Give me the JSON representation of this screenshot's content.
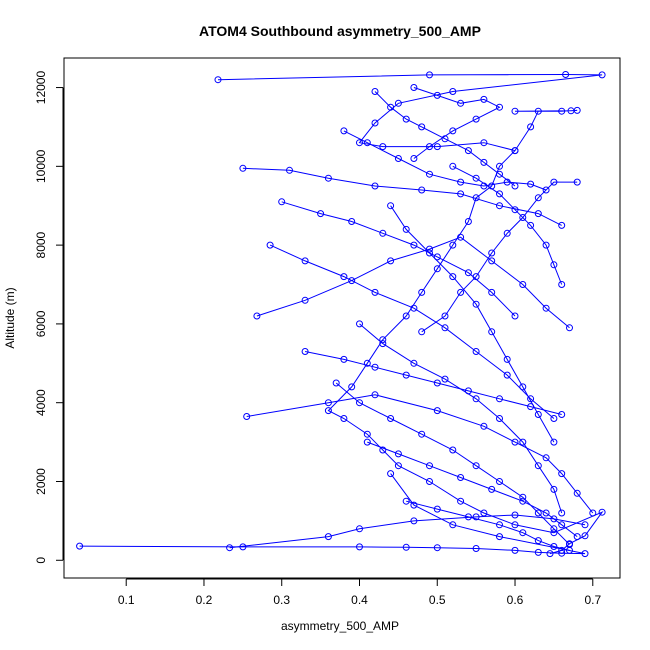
{
  "chart_data": {
    "type": "scatter",
    "title": "ATOM4 Southbound asymmetry_500_AMP",
    "xlabel": "asymmetry_500_AMP",
    "ylabel": "Altitude (m)",
    "xlim": [
      0.02,
      0.735
    ],
    "ylim": [
      -450,
      12750
    ],
    "xticks": [
      0.1,
      0.2,
      0.3,
      0.4,
      0.5,
      0.6,
      0.7
    ],
    "xtick_labels": [
      "0.1",
      "0.2",
      "0.3",
      "0.4",
      "0.5",
      "0.6",
      "0.7"
    ],
    "yticks": [
      0,
      2000,
      4000,
      6000,
      8000,
      10000,
      12000
    ],
    "ytick_labels": [
      "0",
      "2000",
      "4000",
      "6000",
      "8000",
      "10000",
      "12000"
    ],
    "grid": false,
    "series_style": {
      "color": "#0000ff",
      "marker": "open-circle",
      "line": true
    },
    "series": [
      {
        "points": [
          [
            0.645,
            170
          ],
          [
            0.66,
            250
          ],
          [
            0.67,
            420
          ],
          [
            0.69,
            620
          ],
          [
            0.712,
            1220
          ],
          [
            0.65,
            700
          ],
          [
            0.6,
            900
          ],
          [
            0.56,
            1200
          ],
          [
            0.53,
            1500
          ],
          [
            0.49,
            2000
          ],
          [
            0.45,
            2400
          ],
          [
            0.43,
            2800
          ],
          [
            0.41,
            3200
          ],
          [
            0.38,
            3600
          ],
          [
            0.36,
            3800
          ],
          [
            0.39,
            4400
          ],
          [
            0.41,
            5000
          ],
          [
            0.43,
            5600
          ],
          [
            0.46,
            6200
          ],
          [
            0.48,
            6800
          ],
          [
            0.5,
            7400
          ],
          [
            0.52,
            8000
          ],
          [
            0.54,
            8600
          ],
          [
            0.55,
            9200
          ],
          [
            0.57,
            9500
          ],
          [
            0.58,
            10000
          ],
          [
            0.6,
            10400
          ],
          [
            0.62,
            11000
          ],
          [
            0.63,
            11400
          ],
          [
            0.66,
            11400
          ],
          [
            0.68,
            11420
          ],
          [
            0.672,
            11410
          ],
          [
            0.6,
            11400
          ]
        ]
      },
      {
        "points": [
          [
            0.218,
            12200
          ],
          [
            0.49,
            12320
          ],
          [
            0.665,
            12330
          ],
          [
            0.712,
            12320
          ],
          [
            0.52,
            11900
          ],
          [
            0.45,
            11600
          ],
          [
            0.42,
            11100
          ],
          [
            0.4,
            10600
          ],
          [
            0.43,
            10500
          ],
          [
            0.5,
            10500
          ],
          [
            0.56,
            10600
          ],
          [
            0.6,
            10400
          ]
        ]
      },
      {
        "points": [
          [
            0.04,
            360
          ],
          [
            0.25,
            340
          ],
          [
            0.4,
            340
          ],
          [
            0.46,
            330
          ],
          [
            0.5,
            320
          ],
          [
            0.55,
            300
          ],
          [
            0.6,
            250
          ],
          [
            0.63,
            200
          ],
          [
            0.66,
            180
          ],
          [
            0.69,
            170
          ],
          [
            0.58,
            600
          ],
          [
            0.52,
            900
          ],
          [
            0.47,
            1400
          ],
          [
            0.44,
            2200
          ]
        ]
      },
      {
        "points": [
          [
            0.233,
            320
          ],
          [
            0.36,
            600
          ],
          [
            0.4,
            800
          ],
          [
            0.47,
            1000
          ],
          [
            0.55,
            1100
          ],
          [
            0.6,
            1150
          ],
          [
            0.65,
            1050
          ],
          [
            0.69,
            900
          ]
        ]
      },
      {
        "points": [
          [
            0.255,
            3650
          ],
          [
            0.36,
            4000
          ],
          [
            0.42,
            4200
          ],
          [
            0.5,
            3800
          ],
          [
            0.56,
            3400
          ],
          [
            0.6,
            3000
          ],
          [
            0.64,
            2600
          ],
          [
            0.66,
            2200
          ],
          [
            0.68,
            1700
          ],
          [
            0.7,
            1200
          ]
        ]
      },
      {
        "points": [
          [
            0.25,
            9950
          ],
          [
            0.31,
            9900
          ],
          [
            0.36,
            9700
          ],
          [
            0.42,
            9500
          ],
          [
            0.48,
            9400
          ],
          [
            0.53,
            9300
          ],
          [
            0.58,
            9000
          ],
          [
            0.63,
            8800
          ],
          [
            0.66,
            8500
          ]
        ]
      },
      {
        "points": [
          [
            0.268,
            6200
          ],
          [
            0.33,
            6600
          ],
          [
            0.39,
            7100
          ],
          [
            0.44,
            7600
          ],
          [
            0.49,
            7900
          ],
          [
            0.53,
            8200
          ],
          [
            0.57,
            7600
          ],
          [
            0.61,
            7000
          ],
          [
            0.64,
            6400
          ],
          [
            0.67,
            5900
          ]
        ]
      },
      {
        "points": [
          [
            0.285,
            8000
          ],
          [
            0.33,
            7600
          ],
          [
            0.38,
            7200
          ],
          [
            0.42,
            6800
          ],
          [
            0.47,
            6400
          ],
          [
            0.51,
            5900
          ],
          [
            0.55,
            5300
          ],
          [
            0.59,
            4700
          ],
          [
            0.62,
            4100
          ],
          [
            0.65,
            3600
          ]
        ]
      },
      {
        "points": [
          [
            0.3,
            9100
          ],
          [
            0.35,
            8800
          ],
          [
            0.39,
            8600
          ],
          [
            0.43,
            8300
          ],
          [
            0.47,
            8000
          ],
          [
            0.5,
            7700
          ],
          [
            0.54,
            7300
          ],
          [
            0.57,
            6800
          ],
          [
            0.6,
            6200
          ]
        ]
      },
      {
        "points": [
          [
            0.33,
            5300
          ],
          [
            0.38,
            5100
          ],
          [
            0.42,
            4900
          ],
          [
            0.46,
            4700
          ],
          [
            0.5,
            4500
          ],
          [
            0.54,
            4300
          ],
          [
            0.58,
            4100
          ],
          [
            0.62,
            3900
          ],
          [
            0.66,
            3700
          ]
        ]
      },
      {
        "points": [
          [
            0.38,
            10900
          ],
          [
            0.41,
            10600
          ],
          [
            0.45,
            10200
          ],
          [
            0.49,
            9800
          ],
          [
            0.53,
            9600
          ],
          [
            0.56,
            9500
          ],
          [
            0.59,
            9600
          ],
          [
            0.62,
            9550
          ],
          [
            0.64,
            9400
          ]
        ]
      },
      {
        "points": [
          [
            0.42,
            11900
          ],
          [
            0.44,
            11500
          ],
          [
            0.46,
            11200
          ],
          [
            0.48,
            11000
          ],
          [
            0.51,
            10700
          ],
          [
            0.54,
            10400
          ],
          [
            0.56,
            10100
          ],
          [
            0.58,
            9800
          ],
          [
            0.6,
            9500
          ]
        ]
      },
      {
        "points": [
          [
            0.47,
            12000
          ],
          [
            0.5,
            11800
          ],
          [
            0.53,
            11600
          ],
          [
            0.56,
            11700
          ],
          [
            0.58,
            11500
          ],
          [
            0.55,
            11200
          ],
          [
            0.52,
            10900
          ],
          [
            0.49,
            10500
          ],
          [
            0.47,
            10200
          ]
        ]
      },
      {
        "points": [
          [
            0.41,
            3000
          ],
          [
            0.45,
            2700
          ],
          [
            0.49,
            2400
          ],
          [
            0.53,
            2100
          ],
          [
            0.57,
            1800
          ],
          [
            0.61,
            1500
          ],
          [
            0.64,
            1200
          ],
          [
            0.66,
            900
          ],
          [
            0.68,
            600
          ]
        ]
      },
      {
        "points": [
          [
            0.37,
            4500
          ],
          [
            0.4,
            4000
          ],
          [
            0.44,
            3600
          ],
          [
            0.48,
            3200
          ],
          [
            0.52,
            2800
          ],
          [
            0.55,
            2400
          ],
          [
            0.58,
            2000
          ],
          [
            0.61,
            1600
          ],
          [
            0.63,
            1200
          ],
          [
            0.65,
            800
          ],
          [
            0.67,
            400
          ]
        ]
      },
      {
        "points": [
          [
            0.4,
            6000
          ],
          [
            0.43,
            5500
          ],
          [
            0.47,
            5000
          ],
          [
            0.51,
            4600
          ],
          [
            0.55,
            4100
          ],
          [
            0.58,
            3600
          ],
          [
            0.61,
            3000
          ],
          [
            0.63,
            2400
          ],
          [
            0.65,
            1800
          ],
          [
            0.66,
            1200
          ]
        ]
      },
      {
        "points": [
          [
            0.44,
            9000
          ],
          [
            0.46,
            8400
          ],
          [
            0.49,
            7800
          ],
          [
            0.52,
            7200
          ],
          [
            0.55,
            6500
          ],
          [
            0.57,
            5800
          ],
          [
            0.59,
            5100
          ],
          [
            0.61,
            4400
          ],
          [
            0.63,
            3700
          ],
          [
            0.65,
            3000
          ]
        ]
      },
      {
        "points": [
          [
            0.46,
            1500
          ],
          [
            0.5,
            1300
          ],
          [
            0.54,
            1100
          ],
          [
            0.58,
            900
          ],
          [
            0.61,
            700
          ],
          [
            0.63,
            500
          ],
          [
            0.65,
            350
          ],
          [
            0.67,
            250
          ]
        ]
      },
      {
        "points": [
          [
            0.52,
            10000
          ],
          [
            0.55,
            9700
          ],
          [
            0.58,
            9300
          ],
          [
            0.6,
            8900
          ],
          [
            0.62,
            8500
          ],
          [
            0.64,
            8000
          ],
          [
            0.65,
            7500
          ],
          [
            0.66,
            7000
          ]
        ]
      },
      {
        "points": [
          [
            0.48,
            5800
          ],
          [
            0.51,
            6200
          ],
          [
            0.53,
            6800
          ],
          [
            0.55,
            7200
          ],
          [
            0.57,
            7800
          ],
          [
            0.59,
            8300
          ],
          [
            0.61,
            8700
          ],
          [
            0.63,
            9200
          ],
          [
            0.65,
            9600
          ],
          [
            0.68,
            9600
          ]
        ]
      }
    ]
  }
}
